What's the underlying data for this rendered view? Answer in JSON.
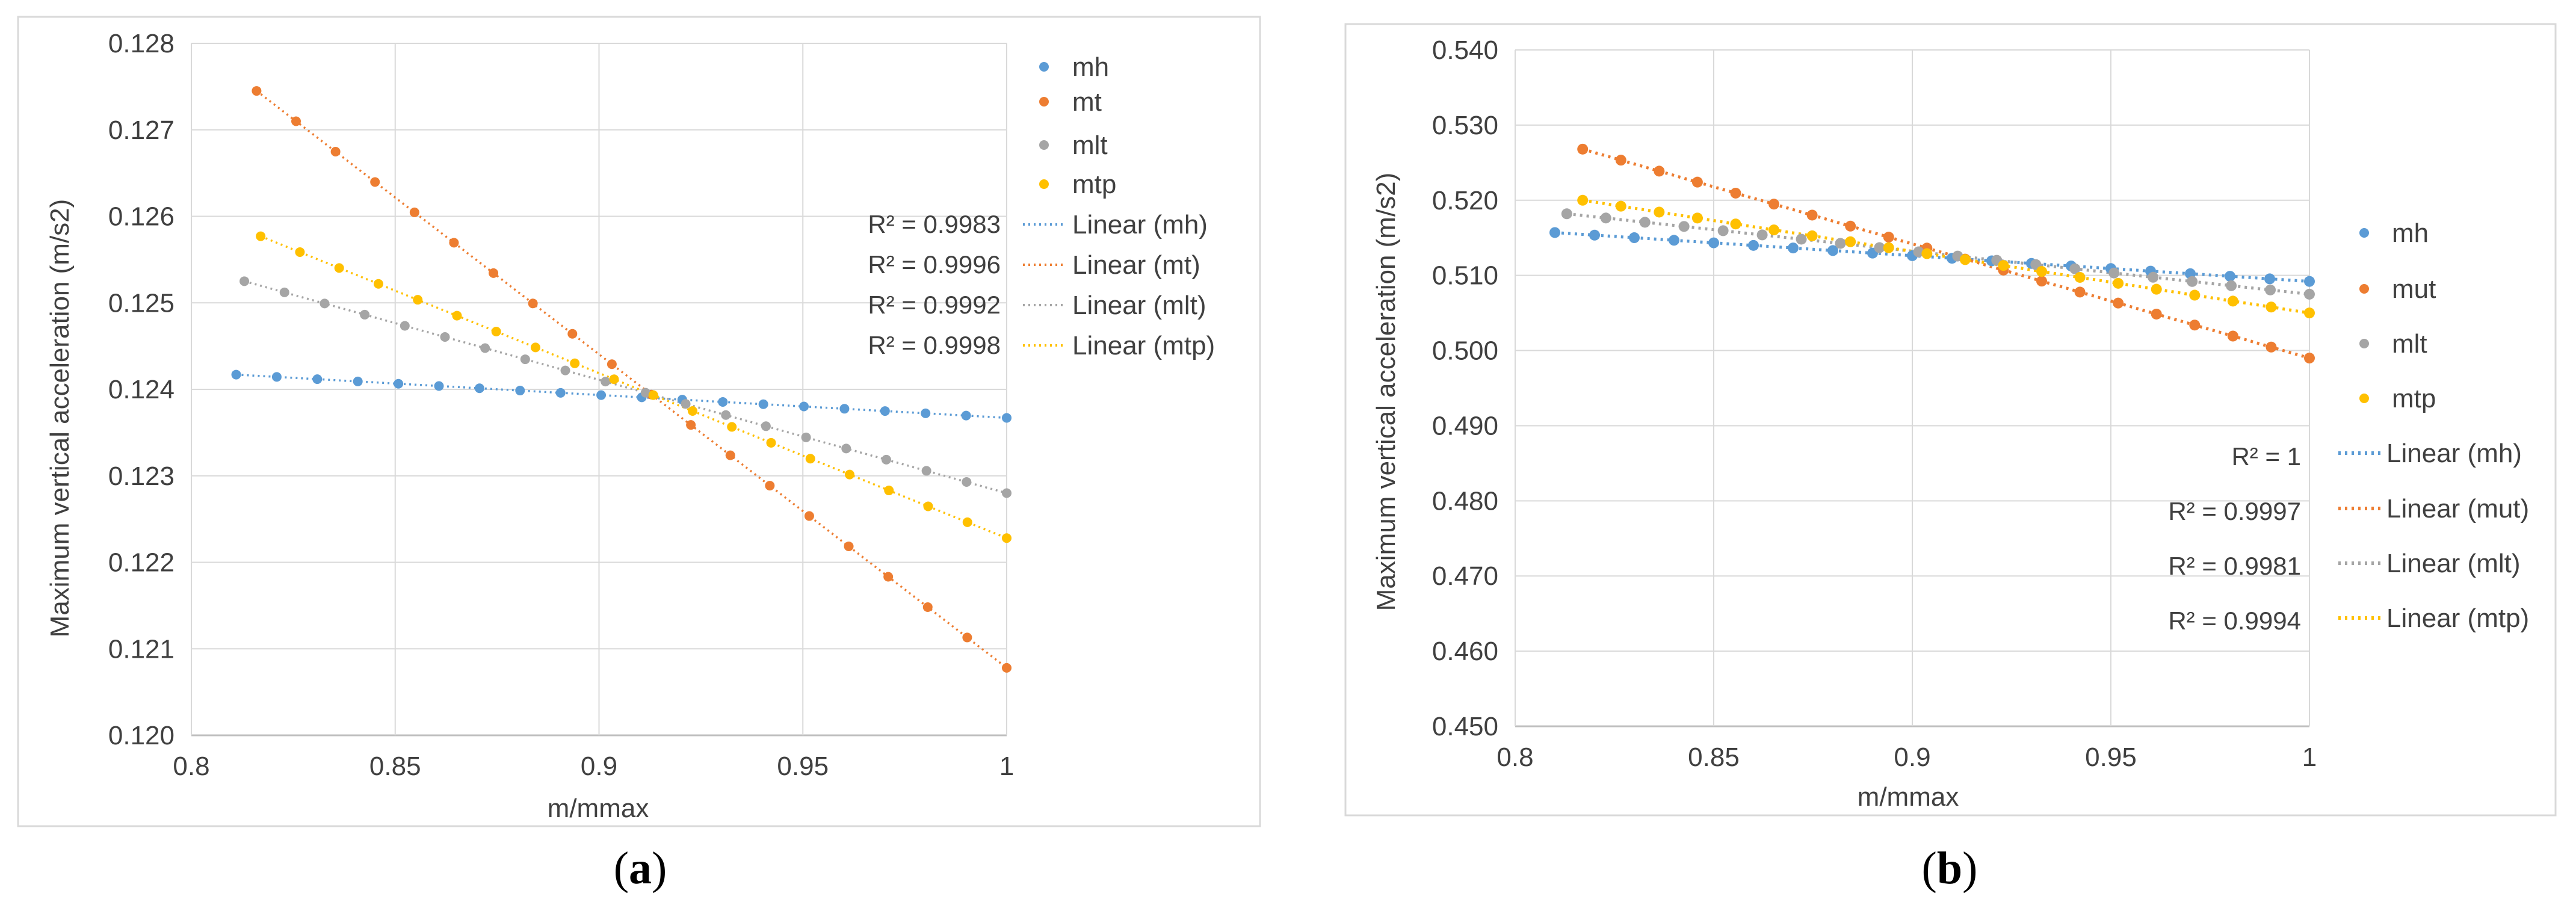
{
  "colors": {
    "mh": "#5b9bd5",
    "mt": "#ed7d31",
    "mlt": "#a5a5a5",
    "mtp": "#ffc000",
    "grid": "#d9d9d9",
    "axis": "#bfbfbf",
    "frame": "#d9d9d9"
  },
  "chart_data": [
    {
      "type": "scatter",
      "panel_label": "a",
      "xlabel": "m/mmax",
      "ylabel": "Maximum vertical acceleration (m/s2)",
      "xlim": [
        0.8,
        1
      ],
      "ylim": [
        0.12,
        0.128
      ],
      "x_ticks": [
        0.8,
        0.85,
        0.9,
        0.95,
        1
      ],
      "x_tick_labels": [
        "0.8",
        "0.85",
        "0.9",
        "0.95",
        "1"
      ],
      "y_ticks": [
        0.12,
        0.121,
        0.122,
        0.123,
        0.124,
        0.125,
        0.126,
        0.127,
        0.128
      ],
      "y_tick_labels": [
        "0.120",
        "0.121",
        "0.122",
        "0.123",
        "0.124",
        "0.125",
        "0.126",
        "0.127",
        "0.128"
      ],
      "grid": true,
      "legend_position": "right",
      "series": [
        {
          "name": "mh",
          "color_key": "mh",
          "trend": "Linear (mh)",
          "r2": "R² = 0.9983",
          "x_start": 0.811,
          "x_end": 1,
          "n": 20,
          "y_start": 0.12417,
          "y_end": 0.12367
        },
        {
          "name": "mt",
          "color_key": "mt",
          "trend": "Linear (mt)",
          "r2": "R² = 0.9996",
          "x_start": 0.816,
          "x_end": 1,
          "n": 20,
          "y_start": 0.12745,
          "y_end": 0.12078
        },
        {
          "name": "mlt",
          "color_key": "mlt",
          "trend": "Linear (mlt)",
          "r2": "R² = 0.9992",
          "x_start": 0.813,
          "x_end": 1,
          "n": 20,
          "y_start": 0.12525,
          "y_end": 0.1228
        },
        {
          "name": "mtp",
          "color_key": "mtp",
          "trend": "Linear (mtp)",
          "r2": "R² = 0.9998",
          "x_start": 0.817,
          "x_end": 1,
          "n": 20,
          "y_start": 0.12577,
          "y_end": 0.12228
        }
      ]
    },
    {
      "type": "scatter",
      "panel_label": "b",
      "xlabel": "m/mmax",
      "ylabel": "Maximum vertical acceleration (m/s2)",
      "xlim": [
        0.8,
        1
      ],
      "ylim": [
        0.45,
        0.54
      ],
      "x_ticks": [
        0.8,
        0.85,
        0.9,
        0.95,
        1
      ],
      "x_tick_labels": [
        "0.8",
        "0.85",
        "0.9",
        "0.95",
        "1"
      ],
      "y_ticks": [
        0.45,
        0.46,
        0.47,
        0.48,
        0.49,
        0.5,
        0.51,
        0.52,
        0.53,
        0.54
      ],
      "y_tick_labels": [
        "0.450",
        "0.460",
        "0.470",
        "0.480",
        "0.490",
        "0.500",
        "0.510",
        "0.520",
        "0.530",
        "0.540"
      ],
      "grid": true,
      "legend_position": "right",
      "series": [
        {
          "name": "mh",
          "color_key": "mh",
          "trend": "Linear (mh)",
          "r2": "R² = 1",
          "x_start": 0.81,
          "x_end": 1,
          "n": 20,
          "y_start": 0.5157,
          "y_end": 0.5092
        },
        {
          "name": "mut",
          "color_key": "mt",
          "trend": "Linear (mut)",
          "r2": "R² = 0.9997",
          "x_start": 0.817,
          "x_end": 1,
          "n": 20,
          "y_start": 0.5268,
          "y_end": 0.499
        },
        {
          "name": "mlt",
          "color_key": "mlt",
          "trend": "Linear (mlt)",
          "r2": "R² = 0.9981",
          "x_start": 0.813,
          "x_end": 1,
          "n": 20,
          "y_start": 0.5182,
          "y_end": 0.5075
        },
        {
          "name": "mtp",
          "color_key": "mtp",
          "trend": "Linear (mtp)",
          "r2": "R² = 0.9994",
          "x_start": 0.817,
          "x_end": 1,
          "n": 20,
          "y_start": 0.52,
          "y_end": 0.505
        }
      ]
    }
  ]
}
